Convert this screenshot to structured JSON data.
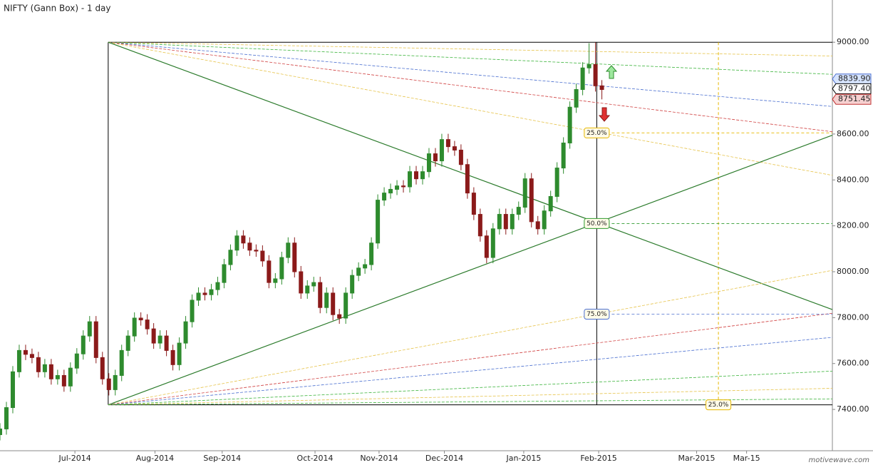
{
  "chart_data": {
    "type": "candlestick",
    "title": "NIFTY (Gann Box) - 1 day",
    "footer": "motivewave.com",
    "xlim": [
      0,
      130
    ],
    "ylim": [
      7220,
      9184
    ],
    "xticks": [
      {
        "value": 11.7,
        "label": "Jul-2014"
      },
      {
        "value": 24.2,
        "label": "Aug-2014"
      },
      {
        "value": 34.7,
        "label": "Sep-2014"
      },
      {
        "value": 49.2,
        "label": "Oct-2014"
      },
      {
        "value": 59.2,
        "label": "Nov-2014"
      },
      {
        "value": 69.4,
        "label": "Dec-2014"
      },
      {
        "value": 81.8,
        "label": "Jan-2015"
      },
      {
        "value": 93.5,
        "label": "Feb-2015"
      },
      {
        "value": 108.8,
        "label": "Mar-2015"
      },
      {
        "value": 116.6,
        "label": "Mar-15"
      }
    ],
    "yticks": [
      {
        "value": 7400,
        "label": "7400.00"
      },
      {
        "value": 7600,
        "label": "7600.00"
      },
      {
        "value": 7800,
        "label": "7800.00"
      },
      {
        "value": 8000,
        "label": "8000.00"
      },
      {
        "value": 8200,
        "label": "8200.00"
      },
      {
        "value": 8400,
        "label": "8400.00"
      },
      {
        "value": 8600,
        "label": "8600.00"
      },
      {
        "value": 9000,
        "label": "9000.00"
      }
    ],
    "up_color": "#2e8b2e",
    "down_color": "#8b1a1a",
    "candles": {
      "x": [
        0,
        1,
        2,
        3,
        4,
        5,
        6,
        7,
        8,
        9,
        10,
        11,
        12,
        13,
        14,
        15,
        16,
        17,
        18,
        19,
        20,
        21,
        22,
        23,
        24,
        25,
        26,
        27,
        28,
        29,
        30,
        31,
        32,
        33,
        34,
        35,
        36,
        37,
        38,
        39,
        40,
        41,
        42,
        43,
        44,
        45,
        46,
        47,
        48,
        49,
        50,
        51,
        52,
        53,
        54,
        55,
        56,
        57,
        58,
        59,
        60,
        61,
        62,
        63,
        64,
        65,
        66,
        67,
        68,
        69,
        70,
        71,
        72,
        73,
        74,
        75,
        76,
        77,
        78,
        79,
        80,
        81,
        82,
        83,
        84,
        85,
        86,
        87,
        88,
        89,
        90,
        91,
        92,
        93,
        94
      ],
      "open": [
        7290,
        7315,
        7408,
        7564,
        7657,
        7640,
        7626,
        7564,
        7595,
        7533,
        7548,
        7502,
        7580,
        7642,
        7720,
        7782,
        7626,
        7533,
        7486,
        7548,
        7657,
        7720,
        7798,
        7790,
        7751,
        7689,
        7720,
        7657,
        7595,
        7689,
        7782,
        7876,
        7907,
        7900,
        7922,
        7953,
        8031,
        8094,
        8156,
        8125,
        8094,
        8090,
        8047,
        7953,
        7969,
        8062,
        8125,
        8000,
        7907,
        7938,
        7953,
        7844,
        7907,
        7813,
        7798,
        7907,
        7984,
        8016,
        8031,
        8125,
        8312,
        8343,
        8359,
        8374,
        8370,
        8436,
        8405,
        8436,
        8514,
        8483,
        8576,
        8545,
        8530,
        8467,
        8343,
        8250,
        8156,
        8062,
        8187,
        8250,
        8187,
        8250,
        8281,
        8405,
        8218,
        8187,
        8265,
        8328,
        8452,
        8561,
        8717,
        8794,
        8888,
        8903,
        8810
      ],
      "high": [
        7340,
        7433,
        7589,
        7682,
        7682,
        7665,
        7651,
        7620,
        7620,
        7573,
        7573,
        7605,
        7667,
        7745,
        7807,
        7807,
        7651,
        7558,
        7573,
        7682,
        7745,
        7823,
        7823,
        7815,
        7776,
        7745,
        7745,
        7682,
        7714,
        7807,
        7901,
        7932,
        7932,
        7947,
        7978,
        8056,
        8119,
        8181,
        8181,
        8150,
        8119,
        8115,
        8072,
        7994,
        8087,
        8150,
        8150,
        8025,
        7963,
        7978,
        7978,
        7932,
        7932,
        7838,
        7932,
        8009,
        8041,
        8056,
        8150,
        8337,
        8368,
        8384,
        8399,
        8399,
        8461,
        8461,
        8461,
        8539,
        8539,
        8601,
        8601,
        8570,
        8555,
        8492,
        8368,
        8275,
        8181,
        8212,
        8275,
        8275,
        8275,
        8306,
        8430,
        8430,
        8243,
        8290,
        8353,
        8477,
        8586,
        8742,
        8819,
        8913,
        8996,
        8999,
        8835
      ],
      "low": [
        7265,
        7290,
        7383,
        7539,
        7615,
        7601,
        7539,
        7539,
        7508,
        7508,
        7477,
        7477,
        7555,
        7617,
        7695,
        7601,
        7508,
        7461,
        7461,
        7523,
        7632,
        7695,
        7765,
        7726,
        7664,
        7664,
        7632,
        7570,
        7570,
        7664,
        7757,
        7851,
        7875,
        7875,
        7897,
        7928,
        8006,
        8069,
        8100,
        8069,
        8065,
        8022,
        7928,
        7928,
        7944,
        8037,
        7975,
        7882,
        7882,
        7913,
        7819,
        7819,
        7788,
        7773,
        7773,
        7882,
        7959,
        7991,
        8006,
        8100,
        8287,
        8318,
        8334,
        8345,
        8345,
        8380,
        8380,
        8411,
        8458,
        8458,
        8520,
        8505,
        8442,
        8318,
        8225,
        8131,
        8037,
        8037,
        8162,
        8162,
        8162,
        8225,
        8256,
        8193,
        8162,
        8162,
        8240,
        8303,
        8427,
        8536,
        8692,
        8769,
        8863,
        8785,
        8751
      ],
      "close": [
        7315,
        7408,
        7564,
        7657,
        7640,
        7626,
        7564,
        7595,
        7533,
        7548,
        7502,
        7580,
        7642,
        7720,
        7782,
        7626,
        7533,
        7486,
        7548,
        7657,
        7720,
        7798,
        7790,
        7751,
        7689,
        7720,
        7657,
        7595,
        7689,
        7782,
        7876,
        7907,
        7900,
        7922,
        7953,
        8031,
        8094,
        8156,
        8125,
        8094,
        8090,
        8047,
        7953,
        7969,
        8062,
        8125,
        8000,
        7907,
        7938,
        7953,
        7844,
        7907,
        7813,
        7798,
        7907,
        7984,
        8016,
        8031,
        8125,
        8312,
        8343,
        8359,
        8374,
        8370,
        8436,
        8405,
        8436,
        8514,
        8483,
        8576,
        8545,
        8530,
        8467,
        8343,
        8250,
        8156,
        8062,
        8187,
        8250,
        8187,
        8250,
        8281,
        8405,
        8218,
        8187,
        8265,
        8328,
        8452,
        8561,
        8717,
        8794,
        8888,
        8903,
        8810,
        8794
      ]
    },
    "gann": {
      "start": 16.9,
      "end": 130,
      "split": 93.2,
      "future": 112.2,
      "top": 9000,
      "bottom": 7420,
      "box_color": "#000000",
      "top_fans": [
        {
          "value": 8940,
          "color": "#e6c34a",
          "dashed": true
        },
        {
          "value": 8860,
          "color": "#3cb43c",
          "dashed": true
        },
        {
          "value": 8720,
          "color": "#4a6fd0",
          "dashed": true
        },
        {
          "value": 8610,
          "color": "#d04040",
          "dashed": true
        },
        {
          "value": 8420,
          "color": "#e6c34a",
          "dashed": true
        },
        {
          "value": 7835,
          "color": "#2a7a2a",
          "dashed": false
        }
      ],
      "bottom_fans": [
        {
          "value": 8595,
          "color": "#2a7a2a",
          "dashed": false
        },
        {
          "value": 8006,
          "color": "#e6c34a",
          "dashed": true
        },
        {
          "value": 7819,
          "color": "#d04040",
          "dashed": true
        },
        {
          "value": 7714,
          "color": "#4a6fd0",
          "dashed": true
        },
        {
          "value": 7567,
          "color": "#3cb43c",
          "dashed": true
        },
        {
          "value": 7492,
          "color": "#e6c34a",
          "dashed": true
        },
        {
          "value": 7446,
          "color": "#3cb43c",
          "dashed": true
        }
      ],
      "levels": [
        {
          "label": "25.0%",
          "value": 8605,
          "color": "#e6b800"
        },
        {
          "label": "50.0%",
          "value": 8210,
          "color": "#2e9b2e"
        },
        {
          "label": "75.0%",
          "value": 7815,
          "color": "#4a6fd0"
        }
      ],
      "time_label": "25.0%",
      "future_color": "#e6b800"
    },
    "price_labels": [
      {
        "value": 8839.9,
        "label": "8839.90",
        "fill": "#d6e4ff",
        "stroke": "#4a6fd0"
      },
      {
        "value": 8797.4,
        "label": "8797.40",
        "fill": "#ffffff",
        "stroke": "#000000"
      },
      {
        "value": 8751.45,
        "label": "8751.45",
        "fill": "#f6d0d0",
        "stroke": "#c03030"
      }
    ]
  }
}
